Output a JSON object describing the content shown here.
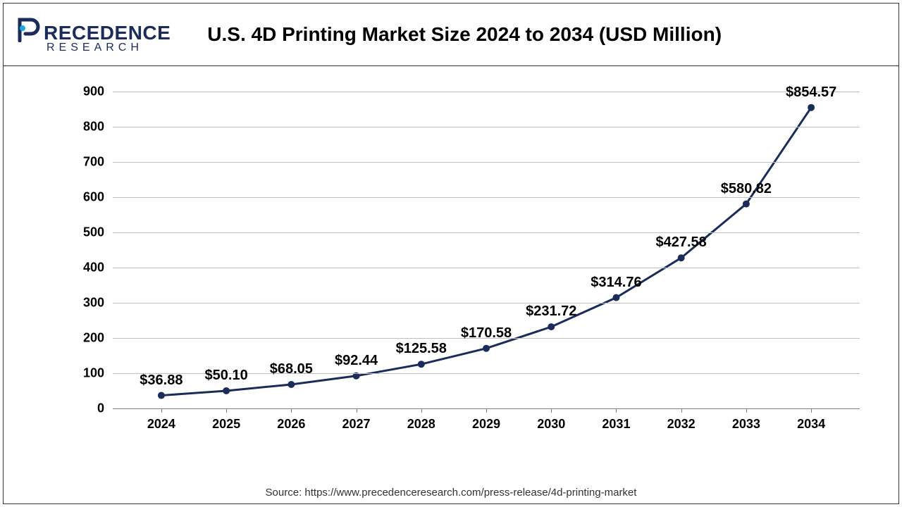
{
  "logo": {
    "text_main": "RECEDENCE",
    "text_sub": "RESEARCH",
    "color": "#1b2b5a",
    "icon_color": "#1ba8e0"
  },
  "title": "U.S. 4D Printing Market Size 2024 to 2034 (USD Million)",
  "source": "Source: https://www.precedenceresearch.com/press-release/4d-printing-market",
  "chart": {
    "type": "line",
    "years": [
      "2024",
      "2025",
      "2026",
      "2027",
      "2028",
      "2029",
      "2030",
      "2031",
      "2032",
      "2033",
      "2034"
    ],
    "values": [
      36.88,
      50.1,
      68.05,
      92.44,
      125.58,
      170.58,
      231.72,
      314.76,
      427.58,
      580.82,
      854.57
    ],
    "labels": [
      "$36.88",
      "$50.10",
      "$68.05",
      "$92.44",
      "$125.58",
      "$170.58",
      "$231.72",
      "$314.76",
      "$427.58",
      "$580.82",
      "$854.57"
    ],
    "ylim": [
      0,
      900
    ],
    "ytick_step": 100,
    "line_color": "#1b2b5a",
    "line_width": 3,
    "marker_color": "#1b2b5a",
    "marker_radius": 5,
    "grid_color": "#bfbfbf",
    "axis_color": "#808080",
    "background_color": "#ffffff",
    "title_fontsize": 28,
    "tick_fontsize": 18,
    "data_label_fontsize": 20,
    "x_inset_ratio": 0.065
  }
}
